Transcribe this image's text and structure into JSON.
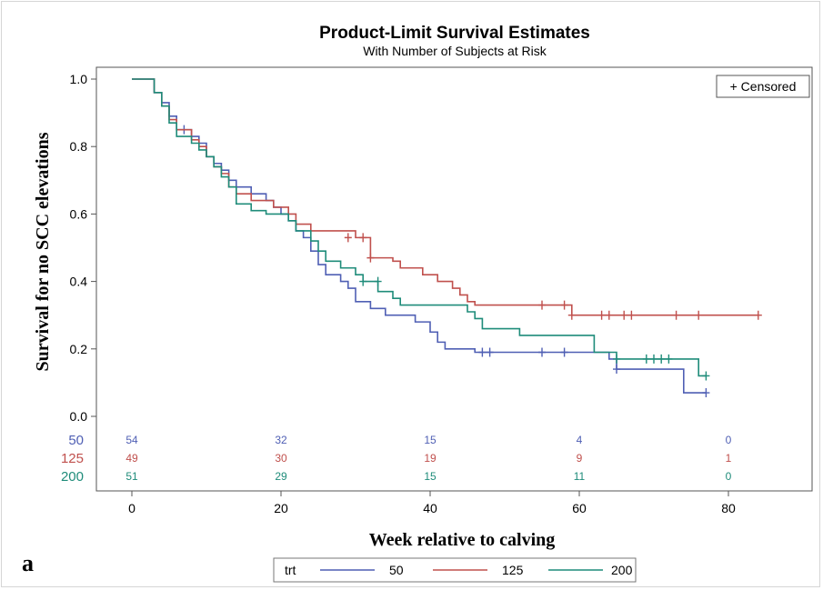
{
  "panel_label": "a",
  "colors": {
    "50": "#4f5fb4",
    "125": "#c0504d",
    "200": "#1f8c7a"
  },
  "chart_data": {
    "type": "line",
    "title": "Product-Limit Survival Estimates",
    "subtitle": "With Number of Subjects at Risk",
    "xlabel": "Week relative to calving",
    "ylabel": "Survival for no SCC elevations",
    "xlim": [
      0,
      85
    ],
    "ylim": [
      0,
      1
    ],
    "x_ticks": [
      "0",
      "20",
      "40",
      "60",
      "80"
    ],
    "y_ticks": [
      "0.0",
      "0.2",
      "0.4",
      "0.6",
      "0.8",
      "1.0"
    ],
    "censored_legend": "+ Censored",
    "legend_title": "trt",
    "risk_table": {
      "times": [
        0,
        20,
        40,
        60,
        80
      ],
      "rows": [
        {
          "group": "50",
          "values": [
            "54",
            "32",
            "15",
            "4",
            "0"
          ]
        },
        {
          "group": "125",
          "values": [
            "49",
            "30",
            "19",
            "9",
            "1"
          ]
        },
        {
          "group": "200",
          "values": [
            "51",
            "29",
            "15",
            "11",
            "0"
          ]
        }
      ]
    },
    "series": [
      {
        "name": "50",
        "steps": [
          [
            0,
            1.0
          ],
          [
            3,
            0.96
          ],
          [
            4,
            0.93
          ],
          [
            5,
            0.89
          ],
          [
            6,
            0.85
          ],
          [
            8,
            0.83
          ],
          [
            9,
            0.81
          ],
          [
            10,
            0.77
          ],
          [
            11,
            0.75
          ],
          [
            12,
            0.73
          ],
          [
            13,
            0.7
          ],
          [
            14,
            0.68
          ],
          [
            16,
            0.66
          ],
          [
            18,
            0.64
          ],
          [
            19,
            0.62
          ],
          [
            20,
            0.6
          ],
          [
            21,
            0.58
          ],
          [
            22,
            0.55
          ],
          [
            23,
            0.53
          ],
          [
            24,
            0.49
          ],
          [
            25,
            0.45
          ],
          [
            26,
            0.42
          ],
          [
            28,
            0.4
          ],
          [
            29,
            0.38
          ],
          [
            30,
            0.34
          ],
          [
            32,
            0.32
          ],
          [
            34,
            0.3
          ],
          [
            38,
            0.28
          ],
          [
            40,
            0.25
          ],
          [
            41,
            0.22
          ],
          [
            42,
            0.2
          ],
          [
            46,
            0.19
          ],
          [
            64,
            0.17
          ],
          [
            65,
            0.14
          ],
          [
            74,
            0.07
          ],
          [
            77,
            0.07
          ]
        ],
        "censored": [
          [
            7,
            0.85
          ],
          [
            47,
            0.19
          ],
          [
            48,
            0.19
          ],
          [
            55,
            0.19
          ],
          [
            58,
            0.19
          ],
          [
            65,
            0.14
          ],
          [
            77,
            0.07
          ]
        ]
      },
      {
        "name": "125",
        "steps": [
          [
            0,
            1.0
          ],
          [
            3,
            0.96
          ],
          [
            4,
            0.92
          ],
          [
            5,
            0.88
          ],
          [
            6,
            0.85
          ],
          [
            8,
            0.82
          ],
          [
            9,
            0.8
          ],
          [
            10,
            0.77
          ],
          [
            11,
            0.74
          ],
          [
            12,
            0.72
          ],
          [
            13,
            0.68
          ],
          [
            14,
            0.66
          ],
          [
            16,
            0.64
          ],
          [
            19,
            0.62
          ],
          [
            21,
            0.6
          ],
          [
            22,
            0.57
          ],
          [
            24,
            0.55
          ],
          [
            30,
            0.53
          ],
          [
            32,
            0.47
          ],
          [
            35,
            0.46
          ],
          [
            36,
            0.44
          ],
          [
            39,
            0.42
          ],
          [
            41,
            0.4
          ],
          [
            43,
            0.38
          ],
          [
            44,
            0.36
          ],
          [
            45,
            0.34
          ],
          [
            46,
            0.33
          ],
          [
            59,
            0.3
          ],
          [
            84,
            0.3
          ]
        ],
        "censored": [
          [
            29,
            0.53
          ],
          [
            31,
            0.53
          ],
          [
            32,
            0.47
          ],
          [
            55,
            0.33
          ],
          [
            58,
            0.33
          ],
          [
            59,
            0.3
          ],
          [
            63,
            0.3
          ],
          [
            64,
            0.3
          ],
          [
            66,
            0.3
          ],
          [
            67,
            0.3
          ],
          [
            73,
            0.3
          ],
          [
            76,
            0.3
          ],
          [
            84,
            0.3
          ]
        ]
      },
      {
        "name": "200",
        "steps": [
          [
            0,
            1.0
          ],
          [
            3,
            0.96
          ],
          [
            4,
            0.92
          ],
          [
            5,
            0.87
          ],
          [
            6,
            0.83
          ],
          [
            8,
            0.81
          ],
          [
            9,
            0.79
          ],
          [
            10,
            0.77
          ],
          [
            11,
            0.74
          ],
          [
            12,
            0.71
          ],
          [
            13,
            0.68
          ],
          [
            14,
            0.63
          ],
          [
            16,
            0.61
          ],
          [
            18,
            0.6
          ],
          [
            21,
            0.58
          ],
          [
            22,
            0.55
          ],
          [
            24,
            0.52
          ],
          [
            25,
            0.49
          ],
          [
            26,
            0.46
          ],
          [
            28,
            0.44
          ],
          [
            30,
            0.42
          ],
          [
            31,
            0.4
          ],
          [
            33,
            0.37
          ],
          [
            35,
            0.35
          ],
          [
            36,
            0.33
          ],
          [
            45,
            0.31
          ],
          [
            46,
            0.29
          ],
          [
            47,
            0.26
          ],
          [
            52,
            0.24
          ],
          [
            62,
            0.19
          ],
          [
            65,
            0.17
          ],
          [
            76,
            0.12
          ],
          [
            77,
            0.12
          ]
        ],
        "censored": [
          [
            31,
            0.4
          ],
          [
            33,
            0.4
          ],
          [
            65,
            0.17
          ],
          [
            69,
            0.17
          ],
          [
            70,
            0.17
          ],
          [
            71,
            0.17
          ],
          [
            72,
            0.17
          ],
          [
            77,
            0.12
          ]
        ]
      }
    ]
  }
}
